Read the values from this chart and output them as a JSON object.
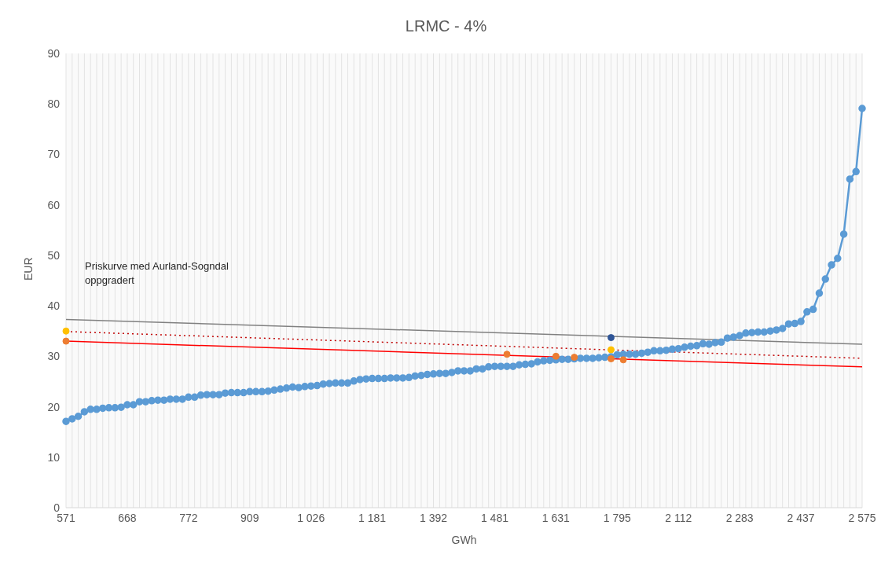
{
  "chart_data": {
    "type": "line",
    "title": "LRMC - 4%",
    "xlabel": "GWh",
    "ylabel": "EUR",
    "categories": [
      "571",
      null,
      null,
      null,
      null,
      null,
      null,
      null,
      null,
      null,
      "668",
      null,
      null,
      null,
      null,
      null,
      null,
      null,
      null,
      null,
      "772",
      null,
      null,
      null,
      null,
      null,
      null,
      null,
      null,
      null,
      "909",
      null,
      null,
      null,
      null,
      null,
      null,
      null,
      null,
      null,
      "1 026",
      null,
      null,
      null,
      null,
      null,
      null,
      null,
      null,
      null,
      "1 181",
      null,
      null,
      null,
      null,
      null,
      null,
      null,
      null,
      null,
      "1 392",
      null,
      null,
      null,
      null,
      null,
      null,
      null,
      null,
      null,
      "1 481",
      null,
      null,
      null,
      null,
      null,
      null,
      null,
      null,
      null,
      "1 631",
      null,
      null,
      null,
      null,
      null,
      null,
      null,
      null,
      null,
      "1 795",
      null,
      null,
      null,
      null,
      null,
      null,
      null,
      null,
      null,
      "2 112",
      null,
      null,
      null,
      null,
      null,
      null,
      null,
      null,
      null,
      "2 283",
      null,
      null,
      null,
      null,
      null,
      null,
      null,
      null,
      null,
      "2 437",
      null,
      null,
      null,
      null,
      null,
      null,
      null,
      null,
      null,
      "2 575"
    ],
    "series": [
      {
        "color": "#5b9bd5",
        "marker": "circle",
        "line_style": "solid",
        "values": [
          17.1,
          17.6,
          18.1,
          19.0,
          19.5,
          19.5,
          19.7,
          19.8,
          19.8,
          19.9,
          20.4,
          20.4,
          21.0,
          21.0,
          21.2,
          21.3,
          21.3,
          21.5,
          21.5,
          21.5,
          21.9,
          21.9,
          22.3,
          22.4,
          22.4,
          22.4,
          22.7,
          22.8,
          22.8,
          22.8,
          23.0,
          23.0,
          23.0,
          23.1,
          23.3,
          23.5,
          23.7,
          23.9,
          23.8,
          24.0,
          24.1,
          24.2,
          24.5,
          24.6,
          24.7,
          24.7,
          24.7,
          25.1,
          25.4,
          25.5,
          25.6,
          25.6,
          25.6,
          25.7,
          25.7,
          25.7,
          25.8,
          26.1,
          26.2,
          26.4,
          26.5,
          26.6,
          26.6,
          26.8,
          27.1,
          27.1,
          27.1,
          27.5,
          27.5,
          27.9,
          28.0,
          28.0,
          28.0,
          28.0,
          28.3,
          28.4,
          28.5,
          28.9,
          29.1,
          29.2,
          29.3,
          29.4,
          29.4,
          29.5,
          29.6,
          29.6,
          29.6,
          29.7,
          29.8,
          29.9,
          30.3,
          30.4,
          30.4,
          30.4,
          30.6,
          30.8,
          31.1,
          31.1,
          31.2,
          31.4,
          31.5,
          31.8,
          32.0,
          32.1,
          32.5,
          32.4,
          32.7,
          32.8,
          33.6,
          33.8,
          34.1,
          34.6,
          34.7,
          34.8,
          34.8,
          35.0,
          35.2,
          35.5,
          36.4,
          36.5,
          36.9,
          38.8,
          39.3,
          42.5,
          45.3,
          48.1,
          49.4,
          54.2,
          65.1,
          66.6,
          79.1
        ]
      },
      {
        "color": "#808080",
        "marker": "none",
        "line_style": "solid",
        "values": [
          37.3,
          null,
          null,
          null,
          null,
          null,
          null,
          null,
          null,
          null,
          null,
          null,
          null,
          null,
          null,
          null,
          null,
          null,
          null,
          null,
          null,
          null,
          null,
          null,
          null,
          null,
          null,
          null,
          null,
          null,
          null,
          null,
          null,
          null,
          null,
          null,
          null,
          null,
          null,
          null,
          null,
          null,
          null,
          null,
          null,
          null,
          null,
          null,
          null,
          null,
          null,
          null,
          null,
          null,
          null,
          null,
          null,
          null,
          null,
          null,
          null,
          null,
          null,
          null,
          null,
          null,
          null,
          null,
          null,
          null,
          null,
          null,
          null,
          null,
          null,
          null,
          null,
          null,
          null,
          null,
          null,
          null,
          null,
          null,
          null,
          null,
          null,
          null,
          null,
          null,
          null,
          null,
          null,
          null,
          null,
          null,
          null,
          null,
          null,
          null,
          null,
          null,
          null,
          null,
          null,
          null,
          null,
          null,
          null,
          null,
          null,
          null,
          null,
          null,
          null,
          null,
          null,
          null,
          null,
          null,
          null,
          null,
          null,
          null,
          null,
          null,
          null,
          null,
          null,
          null,
          32.4
        ]
      },
      {
        "color": "#c00000",
        "marker": "none",
        "line_style": "dotted",
        "values": [
          34.9,
          null,
          null,
          null,
          null,
          null,
          null,
          null,
          null,
          null,
          null,
          null,
          null,
          null,
          null,
          null,
          null,
          null,
          null,
          null,
          null,
          null,
          null,
          null,
          null,
          null,
          null,
          null,
          null,
          null,
          null,
          null,
          null,
          null,
          null,
          null,
          null,
          null,
          null,
          null,
          null,
          null,
          null,
          null,
          null,
          null,
          null,
          null,
          null,
          null,
          null,
          null,
          null,
          null,
          null,
          null,
          null,
          null,
          null,
          null,
          null,
          null,
          null,
          null,
          null,
          null,
          null,
          null,
          null,
          null,
          null,
          null,
          null,
          null,
          null,
          null,
          null,
          null,
          null,
          null,
          null,
          null,
          null,
          null,
          null,
          null,
          null,
          null,
          null,
          null,
          null,
          null,
          null,
          null,
          null,
          null,
          null,
          null,
          null,
          null,
          null,
          null,
          null,
          null,
          null,
          null,
          null,
          null,
          null,
          null,
          null,
          null,
          null,
          null,
          null,
          null,
          null,
          null,
          null,
          null,
          null,
          null,
          null,
          null,
          null,
          null,
          null,
          null,
          null,
          null,
          29.6
        ]
      },
      {
        "color": "#ff0000",
        "marker": "none",
        "line_style": "solid",
        "values": [
          33.0,
          null,
          null,
          null,
          null,
          null,
          null,
          null,
          null,
          null,
          null,
          null,
          null,
          null,
          null,
          null,
          null,
          null,
          null,
          null,
          null,
          null,
          null,
          null,
          null,
          null,
          null,
          null,
          null,
          null,
          null,
          null,
          null,
          null,
          null,
          null,
          null,
          null,
          null,
          null,
          null,
          null,
          null,
          null,
          null,
          null,
          null,
          null,
          null,
          null,
          null,
          null,
          null,
          null,
          null,
          null,
          null,
          null,
          null,
          null,
          null,
          null,
          null,
          null,
          null,
          null,
          null,
          null,
          null,
          null,
          null,
          null,
          null,
          null,
          null,
          null,
          null,
          null,
          null,
          null,
          null,
          null,
          null,
          null,
          null,
          null,
          null,
          null,
          null,
          null,
          null,
          null,
          null,
          null,
          null,
          null,
          null,
          null,
          null,
          null,
          null,
          null,
          null,
          null,
          null,
          null,
          null,
          null,
          null,
          null,
          null,
          null,
          null,
          null,
          null,
          null,
          null,
          null,
          null,
          null,
          null,
          null,
          null,
          null,
          null,
          null,
          null,
          null,
          null,
          null,
          27.9
        ]
      },
      {
        "type": "scatter",
        "color": "#ed7d31",
        "marker": "circle",
        "values": [
          33.0,
          null,
          null,
          null,
          null,
          null,
          null,
          null,
          null,
          null,
          null,
          null,
          null,
          null,
          null,
          null,
          null,
          null,
          null,
          null,
          null,
          null,
          null,
          null,
          null,
          null,
          null,
          null,
          null,
          null,
          null,
          null,
          null,
          null,
          null,
          null,
          null,
          null,
          null,
          null,
          null,
          null,
          null,
          null,
          null,
          null,
          null,
          null,
          null,
          null,
          null,
          null,
          null,
          null,
          null,
          null,
          null,
          null,
          null,
          null,
          null,
          null,
          null,
          null,
          null,
          null,
          null,
          null,
          null,
          null,
          null,
          null,
          30.4,
          null,
          null,
          null,
          null,
          null,
          null,
          null,
          30.0,
          null,
          null,
          29.8,
          null,
          null,
          null,
          null,
          null,
          29.5,
          null,
          29.3,
          null,
          null,
          null,
          null,
          null,
          null,
          null,
          null,
          null,
          null,
          null,
          null,
          null,
          null,
          null,
          null,
          null,
          null,
          null,
          null,
          null,
          null,
          null,
          null,
          null,
          null,
          null,
          null,
          null,
          null,
          null,
          null,
          null,
          null,
          null,
          null,
          null,
          null,
          null
        ]
      },
      {
        "type": "scatter",
        "color": "#ffc000",
        "marker": "circle",
        "values": [
          35.0,
          null,
          null,
          null,
          null,
          null,
          null,
          null,
          null,
          null,
          null,
          null,
          null,
          null,
          null,
          null,
          null,
          null,
          null,
          null,
          null,
          null,
          null,
          null,
          null,
          null,
          null,
          null,
          null,
          null,
          null,
          null,
          null,
          null,
          null,
          null,
          null,
          null,
          null,
          null,
          null,
          null,
          null,
          null,
          null,
          null,
          null,
          null,
          null,
          null,
          null,
          null,
          null,
          null,
          null,
          null,
          null,
          null,
          null,
          null,
          null,
          null,
          null,
          null,
          null,
          null,
          null,
          null,
          null,
          null,
          null,
          null,
          null,
          null,
          null,
          null,
          null,
          null,
          null,
          null,
          null,
          null,
          null,
          null,
          null,
          null,
          null,
          null,
          null,
          31.3,
          null,
          null,
          null,
          null,
          null,
          null,
          null,
          null,
          null,
          null,
          null,
          null,
          null,
          null,
          null,
          null,
          null,
          null,
          null,
          null,
          null,
          null,
          null,
          null,
          null,
          null,
          null,
          null,
          null,
          null,
          null,
          null,
          null,
          null,
          null,
          null,
          null,
          null,
          null,
          null,
          null
        ]
      },
      {
        "type": "scatter",
        "color": "#2f5597",
        "marker": "circle",
        "values": [
          null,
          null,
          null,
          null,
          null,
          null,
          null,
          null,
          null,
          null,
          null,
          null,
          null,
          null,
          null,
          null,
          null,
          null,
          null,
          null,
          null,
          null,
          null,
          null,
          null,
          null,
          null,
          null,
          null,
          null,
          null,
          null,
          null,
          null,
          null,
          null,
          null,
          null,
          null,
          null,
          null,
          null,
          null,
          null,
          null,
          null,
          null,
          null,
          null,
          null,
          null,
          null,
          null,
          null,
          null,
          null,
          null,
          null,
          null,
          null,
          null,
          null,
          null,
          null,
          null,
          null,
          null,
          null,
          null,
          null,
          null,
          null,
          null,
          null,
          null,
          null,
          null,
          null,
          null,
          null,
          null,
          null,
          null,
          null,
          null,
          null,
          null,
          null,
          null,
          33.7,
          null,
          null,
          null,
          null,
          null,
          null,
          null,
          null,
          null,
          null,
          null,
          null,
          null,
          null,
          null,
          null,
          null,
          null,
          null,
          null,
          null,
          null,
          null,
          null,
          null,
          null,
          null,
          null,
          null,
          null,
          null,
          null,
          null,
          null,
          null,
          null,
          null,
          null,
          null,
          null,
          null
        ]
      }
    ],
    "ylim": [
      0,
      90
    ],
    "yticks": [
      0,
      10,
      20,
      30,
      40,
      50,
      60,
      70,
      80,
      90
    ],
    "grid": "x",
    "annotations": [
      "Priskurve med Aurland-Sogndal oppgradert"
    ]
  }
}
